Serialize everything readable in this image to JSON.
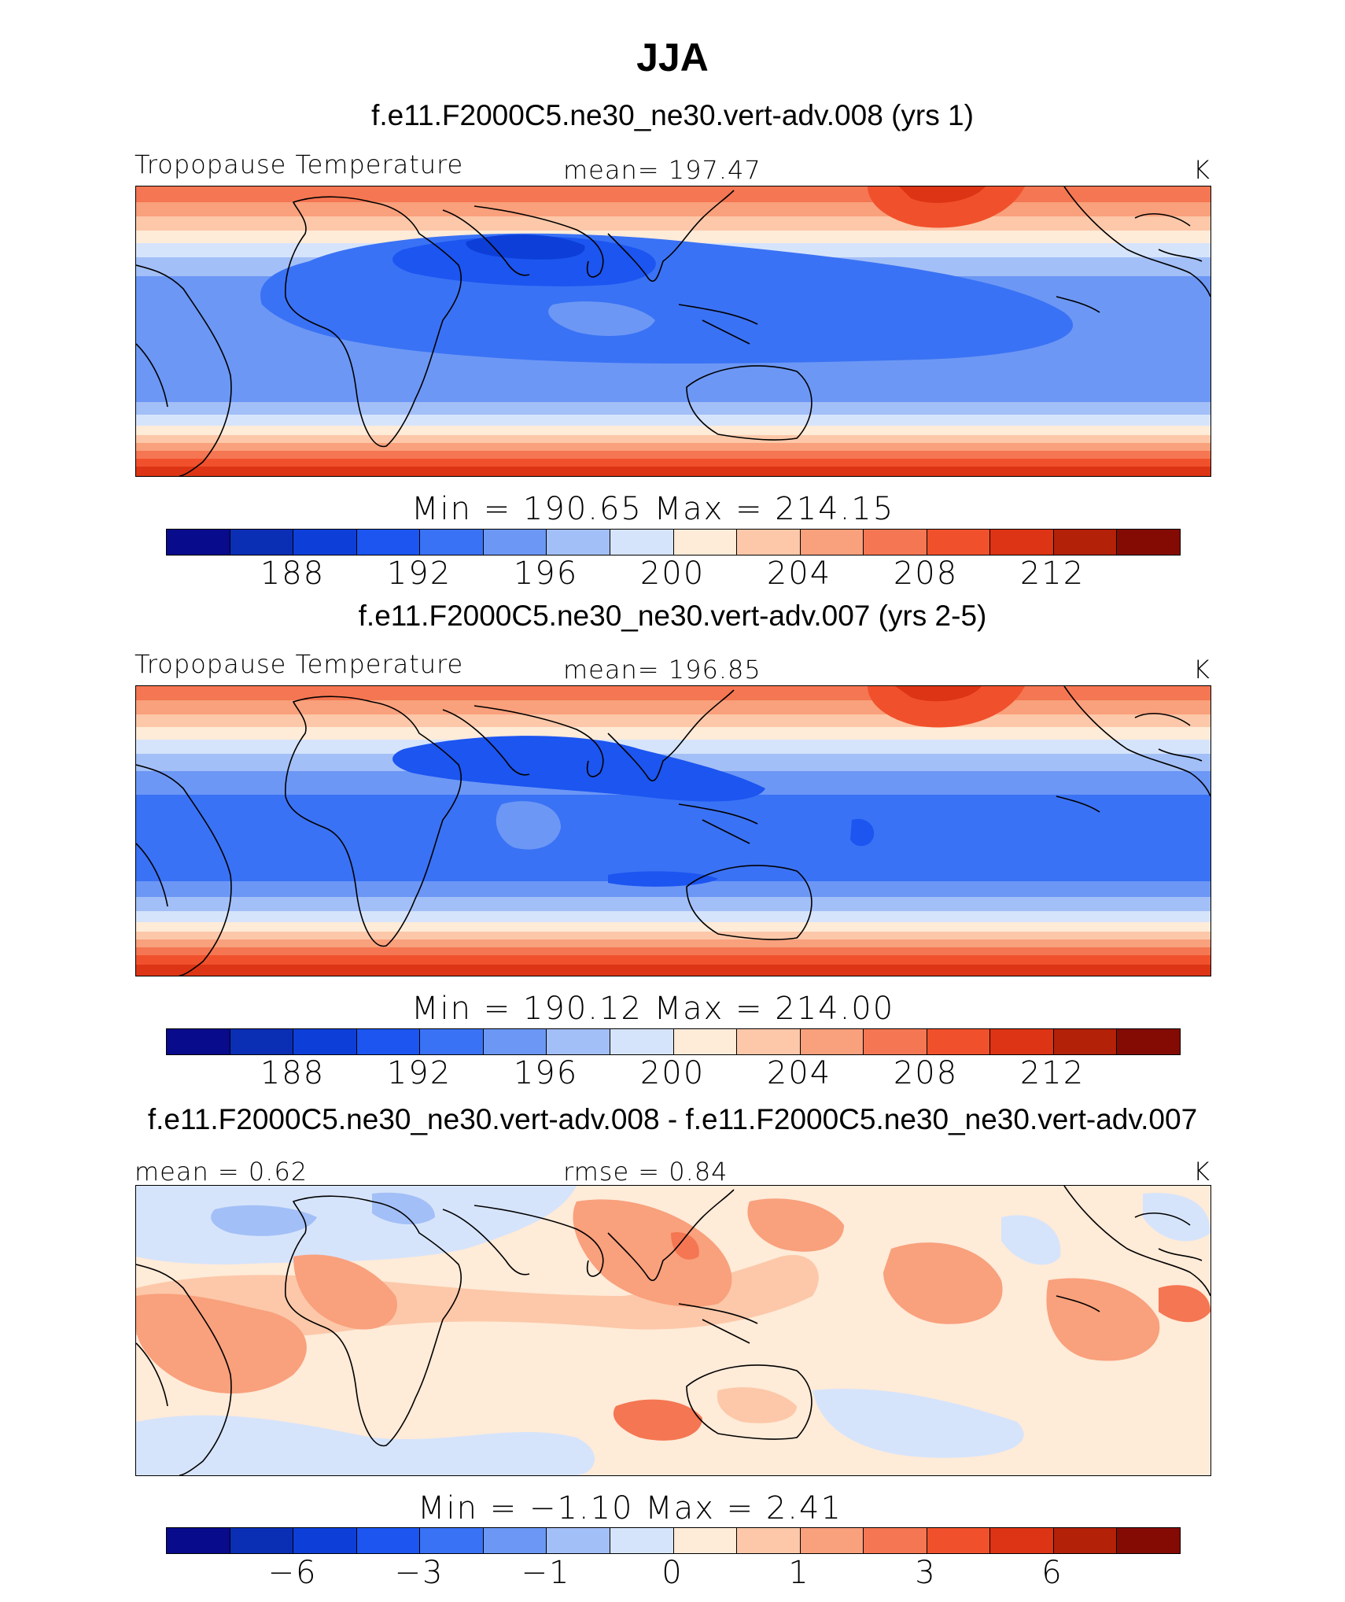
{
  "title": "JJA",
  "colors": {
    "palette": [
      "#080b8c",
      "#0a2fb5",
      "#0d3fd8",
      "#1c55f0",
      "#3a72f5",
      "#6c97f5",
      "#a3bff7",
      "#d6e4fb",
      "#feebd8",
      "#fcc8a9",
      "#f9a07c",
      "#f57652",
      "#f0512c",
      "#dc3414",
      "#b22108",
      "#840b04"
    ]
  },
  "chart_data": [
    {
      "type": "contour-map",
      "case_title": "f.e11.F2000C5.ne30_ne30.vert-adv.008 (yrs 1)",
      "variable": "Tropopause Temperature",
      "stat_label": "mean=  197.47",
      "units": "K",
      "minmax": "Min  =  190.65  Max  =  214.15",
      "colorbar_ticks": [
        "188",
        "192",
        "196",
        "200",
        "204",
        "208",
        "212"
      ],
      "contour_levels": [
        186,
        188,
        190,
        192,
        194,
        196,
        198,
        200,
        202,
        204,
        206,
        208,
        210,
        212,
        214
      ]
    },
    {
      "type": "contour-map",
      "case_title": "f.e11.F2000C5.ne30_ne30.vert-adv.007 (yrs 2-5)",
      "variable": "Tropopause Temperature",
      "stat_label": "mean=  196.85",
      "units": "K",
      "minmax": "Min  =  190.12  Max  =  214.00",
      "colorbar_ticks": [
        "188",
        "192",
        "196",
        "200",
        "204",
        "208",
        "212"
      ],
      "contour_levels": [
        186,
        188,
        190,
        192,
        194,
        196,
        198,
        200,
        202,
        204,
        206,
        208,
        210,
        212,
        214
      ]
    },
    {
      "type": "contour-map-difference",
      "case_title": "f.e11.F2000C5.ne30_ne30.vert-adv.008 - f.e11.F2000C5.ne30_ne30.vert-adv.007",
      "mean_label": "mean =    0.62",
      "rmse_label": "rmse =    0.84",
      "units": "K",
      "minmax": "Min  =   −1.10  Max  =    2.41",
      "colorbar_ticks": [
        "−6",
        "−3",
        "−1",
        "0",
        "1",
        "3",
        "6"
      ],
      "contour_levels": [
        -8,
        -6,
        -4,
        -3,
        -2,
        -1,
        -0.5,
        0,
        0.5,
        1,
        2,
        3,
        4,
        6,
        8
      ]
    }
  ]
}
